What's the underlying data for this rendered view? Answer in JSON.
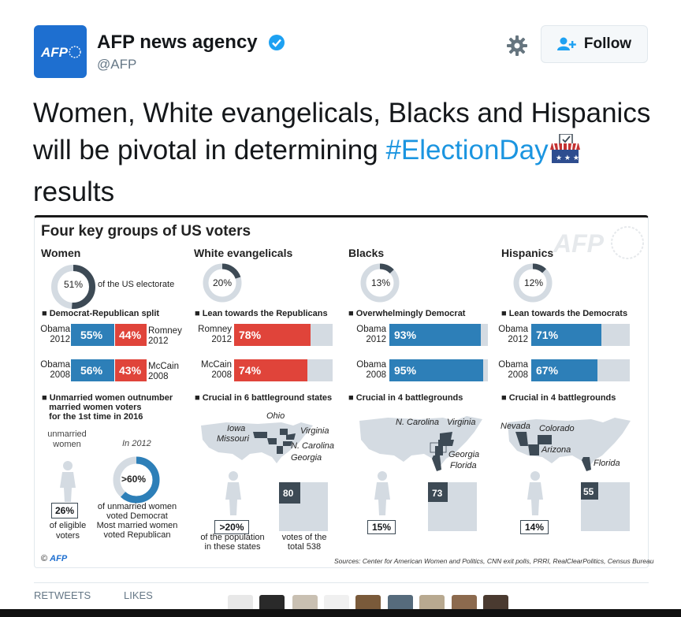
{
  "account": {
    "name": "AFP news agency",
    "handle": "@AFP",
    "logo_text": "AFP",
    "follow_label": "Follow"
  },
  "tweet": {
    "text_part1": "Women, White evangelicals, Blacks and Hispanics will be pivotal in determining ",
    "hashtag": "#ElectionDay",
    "text_part2": "results"
  },
  "infographic": {
    "title": "Four key groups of US voters",
    "watermark": "AFP",
    "credit": "AFP",
    "sources": "Sources: Center for American Women and Politics, CNN exit polls, PRRI, RealClearPolitics, Census Bureau",
    "women": {
      "heading": "Women",
      "share": "51%",
      "share_label": "of the US electorate",
      "split_heading": "Democrat-Republican split",
      "obama2012_label": "Obama",
      "year2012": "2012",
      "obama2012": "55%",
      "romney2012": "44%",
      "romney2012_label": "Romney",
      "obama2008_label": "Obama",
      "year2008": "2008",
      "obama2008": "56%",
      "mccain2008": "43%",
      "mccain2008_label": "McCain",
      "unmarried_heading_1": "Unmarried women outnumber",
      "unmarried_heading_2": "married women voters",
      "unmarried_heading_3": "for the 1st time in 2016",
      "unmarried_label_1": "unmarried",
      "unmarried_label_2": "women",
      "in2012": "In 2012",
      "unmarried_pct": "26%",
      "eligible_1": "of eligible",
      "eligible_2": "voters",
      "donut_pct": ">60%",
      "voted_1": "of unmarried women",
      "voted_2": "voted Democrat",
      "voted_3": "Most married women",
      "voted_4": "voted Republican"
    },
    "evangelicals": {
      "heading": "White evangelicals",
      "share": "20%",
      "lean_heading": "Lean towards the Republicans",
      "r1_label": "Romney",
      "r1_year": "2012",
      "r1_value": "78%",
      "r2_label": "McCain",
      "r2_year": "2008",
      "r2_value": "74%",
      "crucial": "Crucial in 6 battleground states",
      "states": [
        "Ohio",
        "Iowa",
        "Missouri",
        "Virginia",
        "N. Carolina",
        "Georgia"
      ],
      "pop_pct": ">20%",
      "pop_1": "of the population",
      "pop_2": "in these states",
      "votes": "80",
      "votes_1": "votes of the",
      "votes_2": "total 538"
    },
    "blacks": {
      "heading": "Blacks",
      "share": "13%",
      "lean_heading": "Overwhelmingly Democrat",
      "r1_label": "Obama",
      "r1_year": "2012",
      "r1_value": "93%",
      "r2_label": "Obama",
      "r2_year": "2008",
      "r2_value": "95%",
      "crucial": "Crucial in 4 battlegrounds",
      "states": [
        "N. Carolina",
        "Virginia",
        "Georgia",
        "Florida"
      ],
      "pop_pct": "15%",
      "votes": "73"
    },
    "hispanics": {
      "heading": "Hispanics",
      "share": "12%",
      "lean_heading": "Lean towards the Democrats",
      "r1_label": "Obama",
      "r1_year": "2012",
      "r1_value": "71%",
      "r2_label": "Obama",
      "r2_year": "2008",
      "r2_value": "67%",
      "crucial": "Crucial in 4 battlegrounds",
      "states": [
        "Nevada",
        "Colorado",
        "Arizona",
        "Florida"
      ],
      "pop_pct": "14%",
      "votes": "55"
    }
  },
  "stats": {
    "retweets_label": "RETWEETS",
    "likes_label": "LIKES"
  },
  "colors": {
    "blue": "#2d7fb8",
    "red": "#e0443a",
    "gray": "#d4dbe2",
    "dark": "#3d4a55",
    "link": "#1b95e0"
  }
}
